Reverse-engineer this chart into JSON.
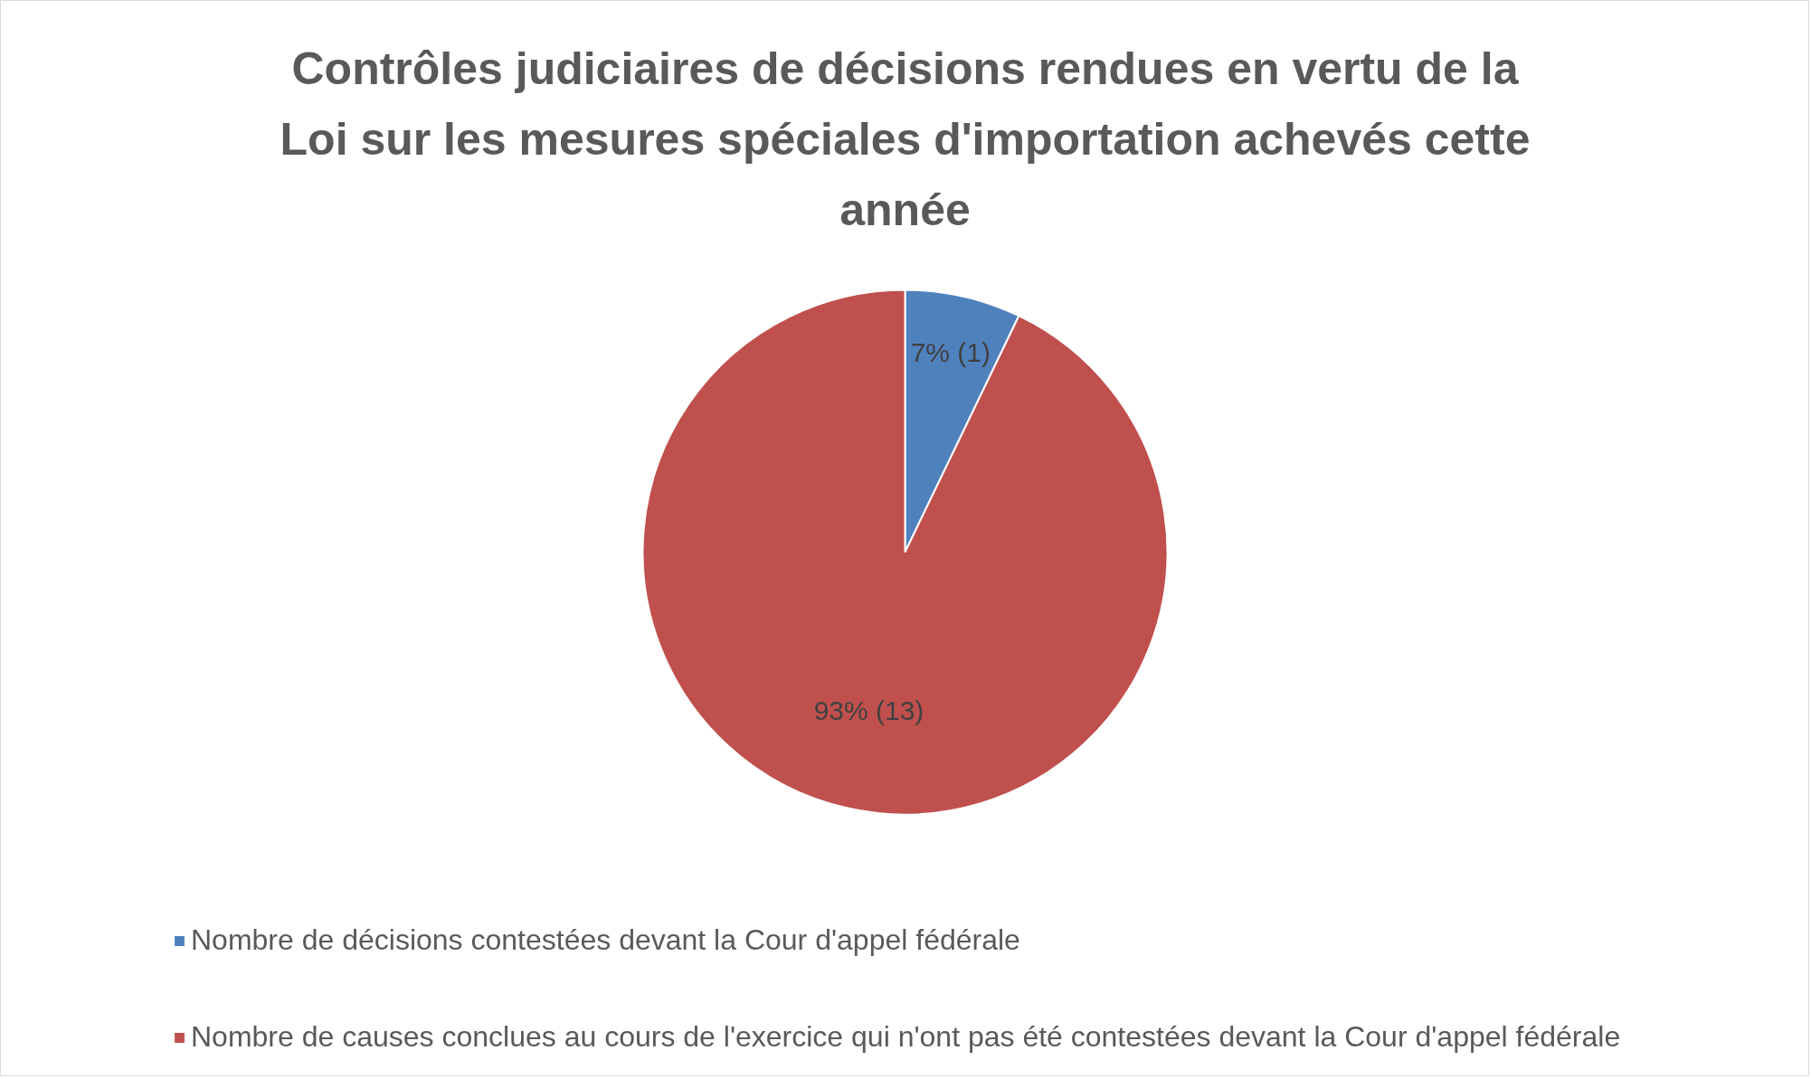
{
  "chart_data": {
    "type": "pie",
    "title": "Contrôles judiciaires de décisions rendues en vertu de la Loi sur les mesures spéciales d'importation achevés cette année",
    "categories": [
      "Nombre de décisions contestées devant la Cour d'appel fédérale",
      "Nombre de causes conclues au cours de l'exercice qui n'ont pas été contestées devant la Cour d'appel fédérale"
    ],
    "values": [
      1,
      13
    ],
    "colors": [
      "#4f81bd",
      "#c0504d"
    ],
    "value_labels": [
      "7% (1)",
      "93% (13)"
    ],
    "legend": "bottom"
  }
}
